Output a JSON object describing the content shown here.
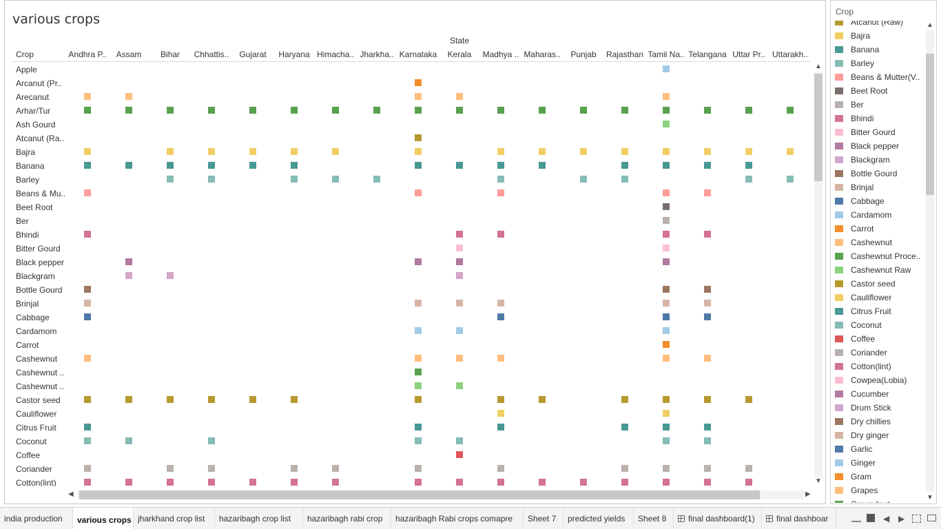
{
  "sheet": {
    "title": "various crops",
    "column_group_label": "State",
    "row_header": "Crop"
  },
  "states": [
    "Andhra P..",
    "Assam",
    "Bihar",
    "Chhattis..",
    "Gujarat",
    "Haryana",
    "Himacha..",
    "Jharkha..",
    "Karnataka",
    "Kerala",
    "Madhya ..",
    "Maharas..",
    "Punjab",
    "Rajasthan",
    "Tamil Na..",
    "Telangana",
    "Uttar Pr..",
    "Uttarakh.."
  ],
  "chart_data": {
    "type": "table",
    "xlabel": "State",
    "ylabel": "Crop",
    "rows": [
      {
        "crop": "Apple",
        "color": "#a0cbe8",
        "states": [
          14
        ]
      },
      {
        "crop": "Arcanut (Pr..",
        "color": "#f28e2b",
        "states": [
          8
        ]
      },
      {
        "crop": "Arecanut",
        "color": "#ffbe7d",
        "states": [
          0,
          1,
          8,
          9,
          14
        ]
      },
      {
        "crop": "Arhar/Tur",
        "color": "#59a14f",
        "states": [
          0,
          1,
          2,
          3,
          4,
          5,
          6,
          7,
          8,
          9,
          10,
          11,
          12,
          13,
          14,
          15,
          16,
          17
        ]
      },
      {
        "crop": "Ash Gourd",
        "color": "#8cd17d",
        "states": [
          14
        ]
      },
      {
        "crop": "Atcanut (Ra..",
        "color": "#b6992d",
        "states": [
          8
        ]
      },
      {
        "crop": "Bajra",
        "color": "#f1ce63",
        "states": [
          0,
          2,
          3,
          4,
          5,
          6,
          8,
          10,
          11,
          12,
          13,
          14,
          15,
          16,
          17
        ]
      },
      {
        "crop": "Banana",
        "color": "#499894",
        "states": [
          0,
          1,
          2,
          3,
          4,
          5,
          8,
          9,
          10,
          11,
          13,
          14,
          15,
          16
        ]
      },
      {
        "crop": "Barley",
        "color": "#86bcb6",
        "states": [
          2,
          3,
          5,
          6,
          7,
          10,
          12,
          13,
          16,
          17
        ]
      },
      {
        "crop": "Beans & Mu..",
        "color": "#ff9d9a",
        "states": [
          0,
          8,
          10,
          14,
          15
        ]
      },
      {
        "crop": "Beet Root",
        "color": "#79706e",
        "states": [
          14
        ]
      },
      {
        "crop": "Ber",
        "color": "#bab0ac",
        "states": [
          14
        ]
      },
      {
        "crop": "Bhindi",
        "color": "#d37295",
        "states": [
          0,
          9,
          10,
          14,
          15
        ]
      },
      {
        "crop": "Bitter Gourd",
        "color": "#fabfd2",
        "states": [
          9,
          14
        ]
      },
      {
        "crop": "Black pepper",
        "color": "#b07aa1",
        "states": [
          1,
          8,
          9,
          14
        ]
      },
      {
        "crop": "Blackgram",
        "color": "#d4a6c8",
        "states": [
          1,
          2,
          9
        ]
      },
      {
        "crop": "Bottle Gourd",
        "color": "#9d7660",
        "states": [
          0,
          14,
          15
        ]
      },
      {
        "crop": "Brinjal",
        "color": "#d7b5a6",
        "states": [
          0,
          8,
          9,
          10,
          14,
          15
        ]
      },
      {
        "crop": "Cabbage",
        "color": "#4e79a7",
        "states": [
          0,
          10,
          14,
          15
        ]
      },
      {
        "crop": "Cardamom",
        "color": "#a0cbe8",
        "states": [
          8,
          9,
          14
        ]
      },
      {
        "crop": "Carrot",
        "color": "#f28e2b",
        "states": [
          14
        ]
      },
      {
        "crop": "Cashewnut",
        "color": "#ffbe7d",
        "states": [
          0,
          8,
          9,
          10,
          14,
          15
        ]
      },
      {
        "crop": "Cashewnut ..",
        "color": "#59a14f",
        "states": [
          8
        ]
      },
      {
        "crop": "Cashewnut ..",
        "color": "#8cd17d",
        "states": [
          8,
          9
        ]
      },
      {
        "crop": "Castor seed",
        "color": "#b6992d",
        "states": [
          0,
          1,
          2,
          3,
          4,
          5,
          8,
          10,
          11,
          13,
          14,
          15,
          16
        ]
      },
      {
        "crop": "Cauliflower",
        "color": "#f1ce63",
        "states": [
          10,
          14
        ]
      },
      {
        "crop": "Citrus Fruit",
        "color": "#499894",
        "states": [
          0,
          8,
          10,
          13,
          14,
          15
        ]
      },
      {
        "crop": "Coconut",
        "color": "#86bcb6",
        "states": [
          0,
          1,
          3,
          8,
          9,
          14,
          15
        ]
      },
      {
        "crop": "Coffee",
        "color": "#e15759",
        "states": [
          9
        ]
      },
      {
        "crop": "Coriander",
        "color": "#bab0ac",
        "states": [
          0,
          2,
          3,
          5,
          6,
          8,
          10,
          13,
          14,
          15,
          16
        ]
      },
      {
        "crop": "Cotton(lint)",
        "color": "#d37295",
        "states": [
          0,
          1,
          2,
          3,
          4,
          5,
          6,
          8,
          9,
          10,
          11,
          12,
          13,
          14,
          15,
          16
        ]
      }
    ]
  },
  "legend": {
    "title": "Crop",
    "items": [
      {
        "label": "Atcanut (Raw)",
        "color": "#b6992d"
      },
      {
        "label": "Bajra",
        "color": "#f1ce63"
      },
      {
        "label": "Banana",
        "color": "#499894"
      },
      {
        "label": "Barley",
        "color": "#86bcb6"
      },
      {
        "label": "Beans & Mutter(V..",
        "color": "#ff9d9a"
      },
      {
        "label": "Beet Root",
        "color": "#79706e"
      },
      {
        "label": "Ber",
        "color": "#bab0ac"
      },
      {
        "label": "Bhindi",
        "color": "#d37295"
      },
      {
        "label": "Bitter Gourd",
        "color": "#fabfd2"
      },
      {
        "label": "Black pepper",
        "color": "#b07aa1"
      },
      {
        "label": "Blackgram",
        "color": "#d4a6c8"
      },
      {
        "label": "Bottle Gourd",
        "color": "#9d7660"
      },
      {
        "label": "Brinjal",
        "color": "#d7b5a6"
      },
      {
        "label": "Cabbage",
        "color": "#4e79a7"
      },
      {
        "label": "Cardamom",
        "color": "#a0cbe8"
      },
      {
        "label": "Carrot",
        "color": "#f28e2b"
      },
      {
        "label": "Cashewnut",
        "color": "#ffbe7d"
      },
      {
        "label": "Cashewnut Proce..",
        "color": "#59a14f"
      },
      {
        "label": "Cashewnut Raw",
        "color": "#8cd17d"
      },
      {
        "label": "Castor seed",
        "color": "#b6992d"
      },
      {
        "label": "Cauliflower",
        "color": "#f1ce63"
      },
      {
        "label": "Citrus Fruit",
        "color": "#499894"
      },
      {
        "label": "Coconut",
        "color": "#86bcb6"
      },
      {
        "label": "Coffee",
        "color": "#e15759"
      },
      {
        "label": "Coriander",
        "color": "#bab0ac"
      },
      {
        "label": "Cotton(lint)",
        "color": "#d37295"
      },
      {
        "label": "Cowpea(Lobia)",
        "color": "#fabfd2"
      },
      {
        "label": "Cucumber",
        "color": "#b07aa1"
      },
      {
        "label": "Drum Stick",
        "color": "#d4a6c8"
      },
      {
        "label": "Dry chillies",
        "color": "#9d7660"
      },
      {
        "label": "Dry ginger",
        "color": "#d7b5a6"
      },
      {
        "label": "Garlic",
        "color": "#4e79a7"
      },
      {
        "label": "Ginger",
        "color": "#a0cbe8"
      },
      {
        "label": "Gram",
        "color": "#f28e2b"
      },
      {
        "label": "Grapes",
        "color": "#ffbe7d"
      },
      {
        "label": "Groundnut",
        "color": "#59a14f"
      }
    ]
  },
  "tabs": [
    {
      "label": "india production",
      "active": false,
      "dashboard": false
    },
    {
      "label": "various crops",
      "active": true,
      "dashboard": false
    },
    {
      "label": "jharkhand crop list",
      "active": false,
      "dashboard": false
    },
    {
      "label": "hazaribagh crop list",
      "active": false,
      "dashboard": false
    },
    {
      "label": "hazaribagh rabi crop",
      "active": false,
      "dashboard": false
    },
    {
      "label": "hazaribagh Rabi crops comapre",
      "active": false,
      "dashboard": false
    },
    {
      "label": "Sheet 7",
      "active": false,
      "dashboard": false
    },
    {
      "label": "predicted yields",
      "active": false,
      "dashboard": false
    },
    {
      "label": "Sheet 8",
      "active": false,
      "dashboard": false
    },
    {
      "label": "final dashboard(1)",
      "active": false,
      "dashboard": true
    },
    {
      "label": "final dashboar",
      "active": false,
      "dashboard": true
    }
  ],
  "icons": {
    "scroll_up": "▲",
    "scroll_down": "▼",
    "scroll_left": "◀",
    "scroll_right": "▶",
    "tab_prev": "◀",
    "tab_next": "▶"
  }
}
